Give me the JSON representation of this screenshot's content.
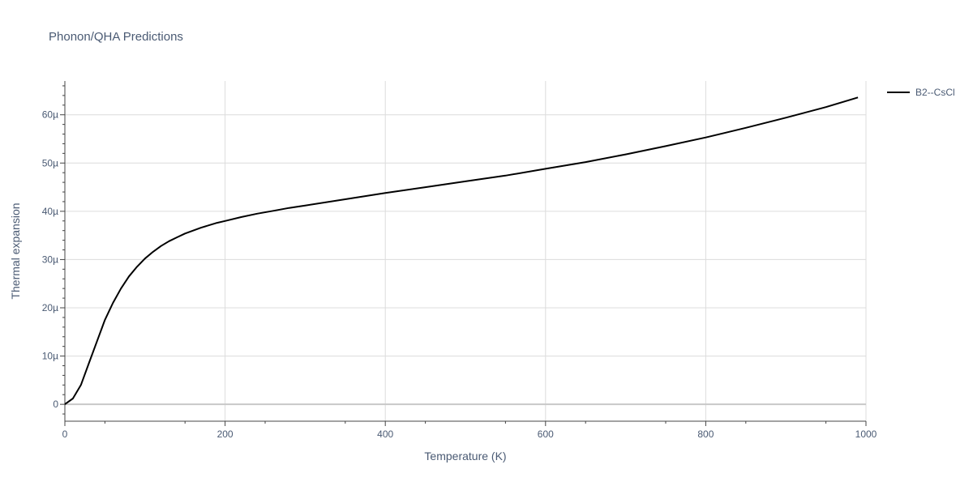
{
  "chart_data": {
    "type": "line",
    "title": "Phonon/QHA Predictions",
    "xlabel": "Temperature (K)",
    "ylabel": "Thermal expansion",
    "xlim": [
      0,
      1000
    ],
    "ylim": [
      -3.5,
      67
    ],
    "x_ticks": [
      0,
      200,
      400,
      600,
      800,
      1000
    ],
    "x_tick_labels": [
      "0",
      "200",
      "400",
      "600",
      "800",
      "1000"
    ],
    "y_ticks": [
      0,
      10,
      20,
      30,
      40,
      50,
      60
    ],
    "y_tick_labels": [
      "0",
      "10µ",
      "20µ",
      "30µ",
      "40µ",
      "50µ",
      "60µ"
    ],
    "grid": true,
    "legend_position": "top-right",
    "series": [
      {
        "name": "B2--CsCl",
        "color": "#000000",
        "x": [
          0,
          10,
          20,
          30,
          40,
          50,
          60,
          70,
          80,
          90,
          100,
          110,
          120,
          130,
          140,
          150,
          160,
          170,
          180,
          190,
          200,
          220,
          240,
          260,
          280,
          300,
          350,
          400,
          450,
          500,
          550,
          600,
          650,
          700,
          750,
          800,
          850,
          900,
          950,
          990
        ],
        "y": [
          0,
          1.2,
          4.0,
          8.5,
          13.0,
          17.5,
          21.0,
          24.0,
          26.5,
          28.5,
          30.2,
          31.6,
          32.8,
          33.8,
          34.6,
          35.4,
          36.0,
          36.6,
          37.1,
          37.6,
          38.0,
          38.8,
          39.5,
          40.1,
          40.7,
          41.2,
          42.5,
          43.8,
          45.0,
          46.2,
          47.4,
          48.8,
          50.2,
          51.8,
          53.5,
          55.3,
          57.3,
          59.4,
          61.6,
          63.6
        ]
      }
    ]
  }
}
